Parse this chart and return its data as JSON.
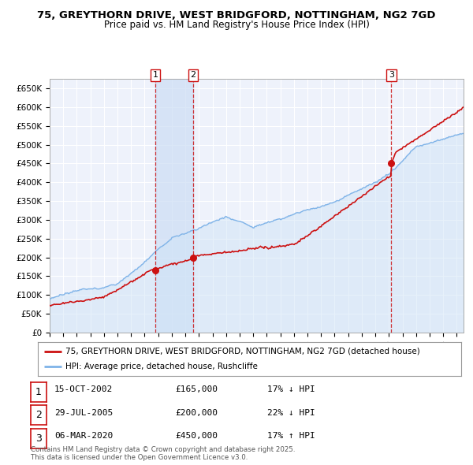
{
  "title_line1": "75, GREYTHORN DRIVE, WEST BRIDGFORD, NOTTINGHAM, NG2 7GD",
  "title_line2": "Price paid vs. HM Land Registry's House Price Index (HPI)",
  "ylim": [
    0,
    675000
  ],
  "yticks": [
    0,
    50000,
    100000,
    150000,
    200000,
    250000,
    300000,
    350000,
    400000,
    450000,
    500000,
    550000,
    600000,
    650000
  ],
  "ytick_labels": [
    "£0",
    "£50K",
    "£100K",
    "£150K",
    "£200K",
    "£250K",
    "£300K",
    "£350K",
    "£400K",
    "£450K",
    "£500K",
    "£550K",
    "£600K",
    "£650K"
  ],
  "background_color": "#ffffff",
  "plot_bg_color": "#eef2fb",
  "grid_color": "#ffffff",
  "hpi_color": "#7fb3e8",
  "hpi_fill_color": "#d0e4f7",
  "price_color": "#cc1111",
  "vline_color": "#cc1111",
  "shade_color": "#ccddf5",
  "transactions": [
    {
      "date_num": 2002.79,
      "price": 165000,
      "label": "1"
    },
    {
      "date_num": 2005.57,
      "price": 200000,
      "label": "2"
    },
    {
      "date_num": 2020.18,
      "price": 450000,
      "label": "3"
    }
  ],
  "legend_entries": [
    "75, GREYTHORN DRIVE, WEST BRIDGFORD, NOTTINGHAM, NG2 7GD (detached house)",
    "HPI: Average price, detached house, Rushcliffe"
  ],
  "table_rows": [
    {
      "label": "1",
      "date": "15-OCT-2002",
      "price": "£165,000",
      "change": "17% ↓ HPI"
    },
    {
      "label": "2",
      "date": "29-JUL-2005",
      "price": "£200,000",
      "change": "22% ↓ HPI"
    },
    {
      "label": "3",
      "date": "06-MAR-2020",
      "price": "£450,000",
      "change": "17% ↑ HPI"
    }
  ],
  "footnote": "Contains HM Land Registry data © Crown copyright and database right 2025.\nThis data is licensed under the Open Government Licence v3.0.",
  "xmin": 1995.0,
  "xmax": 2025.5
}
